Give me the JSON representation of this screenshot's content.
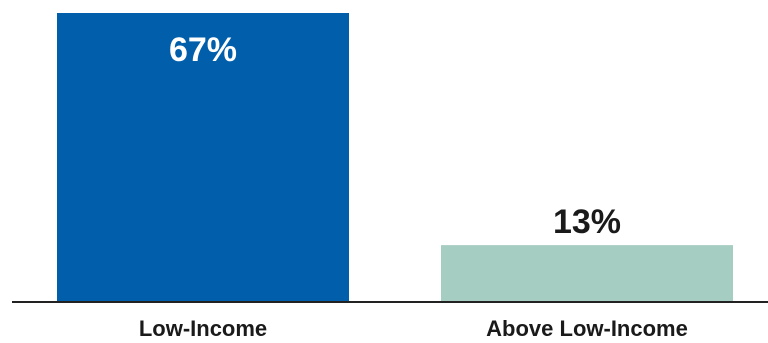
{
  "chart_data": {
    "type": "bar",
    "categories": [
      "Low-Income",
      "Above Low-Income"
    ],
    "values": [
      67,
      13
    ],
    "value_labels": [
      "67%",
      "13%"
    ],
    "bar_colors": [
      "#005eaa",
      "#a6cdc2"
    ],
    "ylim": [
      0,
      67
    ],
    "grid": false,
    "legend": "none"
  }
}
